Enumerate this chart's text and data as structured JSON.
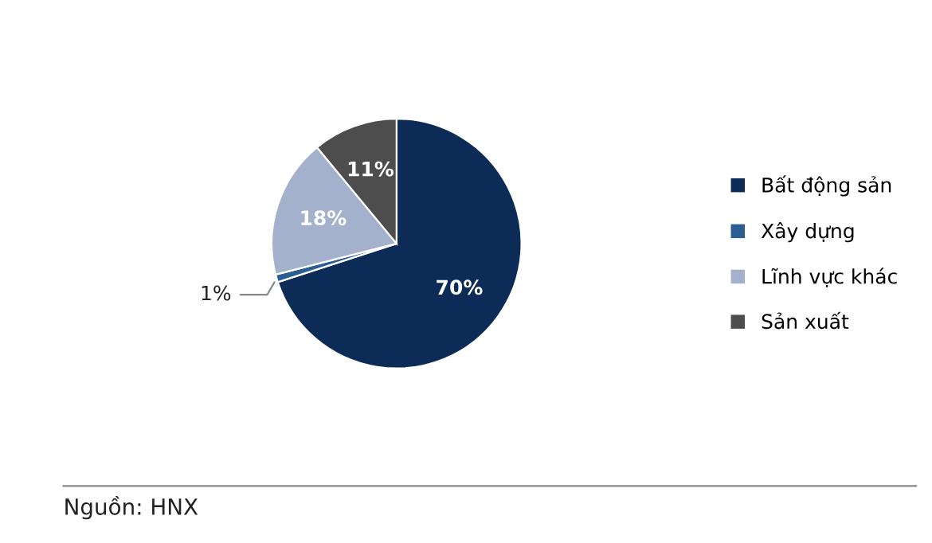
{
  "chart_data": {
    "type": "pie",
    "categories": [
      "Bất động sản",
      "Xây dựng",
      "Lĩnh vực khác",
      "Sản xuất"
    ],
    "values": [
      70,
      1,
      18,
      11
    ],
    "colors": [
      "#0d2b57",
      "#2b5f93",
      "#a3b1cc",
      "#4d4d4d"
    ],
    "value_labels": [
      "70%",
      "1%",
      "18%",
      "11%"
    ],
    "legend": "right",
    "annotations": [
      "Nguồn: HNX"
    ]
  }
}
